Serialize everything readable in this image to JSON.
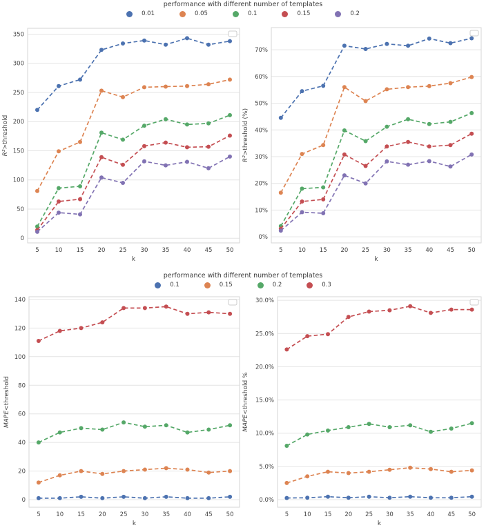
{
  "legends": [
    {
      "title": "performance with different number of templates",
      "entries": [
        {
          "label": "0.01",
          "color": "#4C72B0"
        },
        {
          "label": "0.05",
          "color": "#DD8452"
        },
        {
          "label": "0.1",
          "color": "#55A868"
        },
        {
          "label": "0.15",
          "color": "#C44E52"
        },
        {
          "label": "0.2",
          "color": "#8172B3"
        }
      ]
    },
    {
      "title": "performance with different number of templates",
      "entries": [
        {
          "label": "0.1",
          "color": "#4C72B0"
        },
        {
          "label": "0.15",
          "color": "#DD8452"
        },
        {
          "label": "0.2",
          "color": "#55A868"
        },
        {
          "label": "0.3",
          "color": "#C44E52"
        }
      ]
    }
  ],
  "chart_data": [
    {
      "type": "line",
      "line_style": "dashed",
      "marker": "circle",
      "grid": "horizontal",
      "x": [
        5,
        10,
        15,
        20,
        25,
        30,
        35,
        40,
        45,
        50
      ],
      "xlabel": "k",
      "ylabel_math": "R²",
      "ylabel_rest": ">threshold",
      "xlim": [
        2.75,
        52.25
      ],
      "ylim": [
        -8,
        360
      ],
      "yticks": [
        0,
        50,
        100,
        150,
        200,
        250,
        300,
        350
      ],
      "ytick_labels": [
        "0",
        "50",
        "100",
        "150",
        "200",
        "250",
        "300",
        "350"
      ],
      "series": [
        {
          "name": "0.01",
          "color": "#4C72B0",
          "values": [
            220,
            261,
            272,
            323,
            334,
            339,
            332,
            343,
            332,
            338
          ]
        },
        {
          "name": "0.05",
          "color": "#DD8452",
          "values": [
            81,
            149,
            165,
            253,
            242,
            259,
            260,
            261,
            264,
            272
          ]
        },
        {
          "name": "0.1",
          "color": "#55A868",
          "values": [
            20,
            86,
            89,
            181,
            169,
            193,
            204,
            195,
            197,
            211
          ]
        },
        {
          "name": "0.15",
          "color": "#C44E52",
          "values": [
            14,
            63,
            67,
            139,
            126,
            158,
            164,
            156,
            157,
            176
          ]
        },
        {
          "name": "0.2",
          "color": "#8172B3",
          "values": [
            11,
            44,
            41,
            104,
            95,
            132,
            125,
            131,
            120,
            140
          ]
        }
      ]
    },
    {
      "type": "line",
      "line_style": "dashed",
      "marker": "circle",
      "grid": "horizontal",
      "x": [
        5,
        10,
        15,
        20,
        25,
        30,
        35,
        40,
        45,
        50
      ],
      "xlabel": "k",
      "ylabel_math": "R²",
      "ylabel_rest": ">threshold (%)",
      "xlim": [
        2.75,
        52.25
      ],
      "ylim": [
        -2.3,
        78.3
      ],
      "yticks": [
        0,
        10,
        20,
        30,
        40,
        50,
        60,
        70
      ],
      "ytick_labels": [
        "0%",
        "10%",
        "20%",
        "30%",
        "40%",
        "50%",
        "60%",
        "70%"
      ],
      "series": [
        {
          "name": "0.01",
          "color": "#4C72B0",
          "values": [
            44.5,
            54.5,
            56.5,
            71.5,
            70.3,
            72.2,
            71.5,
            74.2,
            72.5,
            74.3
          ]
        },
        {
          "name": "0.05",
          "color": "#DD8452",
          "values": [
            16.5,
            31.0,
            34.3,
            56.0,
            50.8,
            55.2,
            56.0,
            56.4,
            57.5,
            59.8
          ]
        },
        {
          "name": "0.1",
          "color": "#55A868",
          "values": [
            4.0,
            18.0,
            18.5,
            39.8,
            35.8,
            41.2,
            44.0,
            42.2,
            43.0,
            46.3
          ]
        },
        {
          "name": "0.15",
          "color": "#C44E52",
          "values": [
            3.0,
            13.2,
            14.0,
            30.8,
            26.5,
            33.8,
            35.5,
            33.8,
            34.3,
            38.6
          ]
        },
        {
          "name": "0.2",
          "color": "#8172B3",
          "values": [
            2.3,
            9.2,
            8.8,
            23.0,
            20.0,
            28.2,
            27.0,
            28.3,
            26.3,
            30.8
          ]
        }
      ]
    },
    {
      "type": "line",
      "line_style": "dashed",
      "marker": "circle",
      "grid": "horizontal",
      "x": [
        5,
        10,
        15,
        20,
        25,
        30,
        35,
        40,
        45,
        50
      ],
      "xlabel": "k",
      "ylabel_math": "MAPE",
      "ylabel_rest": "<threshold",
      "xlim": [
        2.75,
        52.25
      ],
      "ylim": [
        -5.3,
        141.9
      ],
      "yticks": [
        0,
        20,
        40,
        60,
        80,
        100,
        120,
        140
      ],
      "ytick_labels": [
        "0",
        "20",
        "40",
        "60",
        "80",
        "100",
        "120",
        "140"
      ],
      "series": [
        {
          "name": "0.1",
          "color": "#4C72B0",
          "values": [
            1,
            1,
            2,
            1,
            2,
            1,
            2,
            1,
            1,
            2
          ]
        },
        {
          "name": "0.15",
          "color": "#DD8452",
          "values": [
            12,
            17,
            20,
            18,
            20,
            21,
            22,
            21,
            19,
            20
          ]
        },
        {
          "name": "0.2",
          "color": "#55A868",
          "values": [
            40,
            47,
            50,
            49,
            54,
            51,
            52,
            47,
            49,
            52
          ]
        },
        {
          "name": "0.3",
          "color": "#C44E52",
          "values": [
            111,
            118,
            120,
            124,
            134,
            134,
            135,
            130,
            131,
            130
          ]
        }
      ]
    },
    {
      "type": "line",
      "line_style": "dashed",
      "marker": "circle",
      "grid": "horizontal",
      "x": [
        5,
        10,
        15,
        20,
        25,
        30,
        35,
        40,
        45,
        50
      ],
      "xlabel": "k",
      "ylabel_math": "MAPE",
      "ylabel_rest": "<threshold %",
      "xlim": [
        2.75,
        52.25
      ],
      "ylim": [
        -1.14,
        30.53
      ],
      "yticks": [
        0,
        5,
        10,
        15,
        20,
        25,
        30
      ],
      "ytick_labels": [
        "0.0%",
        "5.0%",
        "10.0%",
        "15.0%",
        "20.0%",
        "25.0%",
        "30.0%"
      ],
      "series": [
        {
          "name": "0.1",
          "color": "#4C72B0",
          "values": [
            0.25,
            0.28,
            0.45,
            0.28,
            0.45,
            0.28,
            0.45,
            0.28,
            0.28,
            0.45
          ]
        },
        {
          "name": "0.15",
          "color": "#DD8452",
          "values": [
            2.5,
            3.5,
            4.2,
            4.0,
            4.2,
            4.5,
            4.8,
            4.6,
            4.2,
            4.4
          ]
        },
        {
          "name": "0.2",
          "color": "#55A868",
          "values": [
            8.1,
            9.8,
            10.4,
            10.9,
            11.4,
            10.9,
            11.2,
            10.2,
            10.7,
            11.5
          ]
        },
        {
          "name": "0.3",
          "color": "#C44E52",
          "values": [
            22.6,
            24.6,
            24.9,
            27.5,
            28.3,
            28.5,
            29.1,
            28.1,
            28.6,
            28.6
          ]
        }
      ]
    }
  ]
}
